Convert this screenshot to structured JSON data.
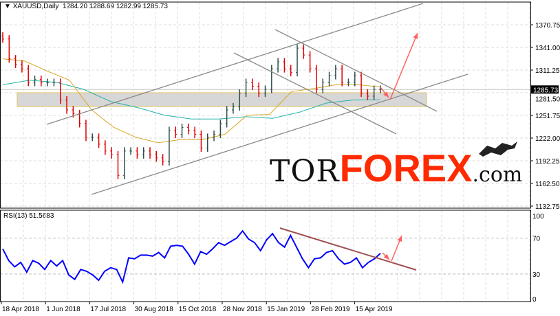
{
  "header": {
    "symbol": "XAUUSD,Daily",
    "open": "1284.20",
    "high": "1288.69",
    "low": "1282.99",
    "close": "1285.73"
  },
  "rsi_label": {
    "name": "RSI(13)",
    "value": "51.5683"
  },
  "logo": {
    "tor": "TOR",
    "forex": "FOREX",
    "com": ".com"
  },
  "colors": {
    "bull_bar": "#2f4f4f",
    "bear_bar": "#e00000",
    "ma_fast": "#daa520",
    "ma_slow": "#20b2aa",
    "rsi_line": "#0000ff",
    "rsi_trend": "#a05050",
    "arrows": "#ff6060",
    "zone": "#d3d3d3",
    "logo_red": "#ff2a00"
  },
  "chart_data": [
    {
      "type": "ohlc",
      "title": "XAUUSD,Daily",
      "y_ticks": [
        "1370.75",
        "1341.00",
        "1311.25",
        "1281.50",
        "1251.75",
        "1222.00",
        "1192.25",
        "1162.50",
        "1132.75"
      ],
      "ylim": [
        1132.75,
        1385
      ],
      "current_price": "1285.73",
      "x_ticks": [
        "18 Apr 2018",
        "1 Jun 2018",
        "17 Jul 2018",
        "30 Aug 2018",
        "15 Oct 2018",
        "28 Nov 2018",
        "15 Jan 2019",
        "28 Feb 2019",
        "15 Apr 2019"
      ],
      "closes": [
        1352,
        1326,
        1319,
        1313,
        1295,
        1299,
        1295,
        1295,
        1295,
        1272,
        1259,
        1254,
        1241,
        1223,
        1223,
        1214,
        1205,
        1200,
        1173,
        1205,
        1205,
        1200,
        1205,
        1200,
        1196,
        1191,
        1232,
        1227,
        1236,
        1232,
        1227,
        1209,
        1223,
        1227,
        1241,
        1259,
        1263,
        1281,
        1295,
        1290,
        1281,
        1286,
        1313,
        1322,
        1313,
        1308,
        1340,
        1331,
        1313,
        1286,
        1295,
        1304,
        1313,
        1295,
        1295,
        1304,
        1281,
        1277,
        1286,
        1286
      ],
      "ma_fast": [
        1326,
        1323,
        1310,
        1298,
        1259,
        1236,
        1223,
        1216,
        1220,
        1220,
        1227,
        1252,
        1253,
        1283,
        1287,
        1292,
        1292,
        1289
      ],
      "ma_slow": [
        1292,
        1298,
        1295,
        1286,
        1270,
        1262,
        1252,
        1247,
        1247,
        1250,
        1248,
        1256,
        1268,
        1272,
        1272
      ],
      "support_zone": [
        1263.5,
        1281.5
      ],
      "grid": true
    },
    {
      "type": "line",
      "title": "RSI(13) 51.5683",
      "y_ticks": [
        "100",
        "70",
        "30",
        "0"
      ],
      "ylim": [
        0,
        100
      ],
      "levels": [
        70,
        30
      ],
      "values": [
        58,
        45,
        38,
        43,
        32,
        45,
        42,
        35,
        45,
        39,
        45,
        29,
        24,
        35,
        33,
        29,
        23,
        33,
        37,
        35,
        21,
        48,
        47,
        51,
        51,
        50,
        54,
        48,
        61,
        62,
        61,
        52,
        41,
        55,
        52,
        58,
        65,
        62,
        66,
        70,
        78,
        69,
        65,
        56,
        68,
        75,
        65,
        60,
        73,
        60,
        47,
        37,
        47,
        48,
        54,
        56,
        47,
        41,
        43,
        48,
        37,
        43,
        47,
        53
      ]
    }
  ]
}
